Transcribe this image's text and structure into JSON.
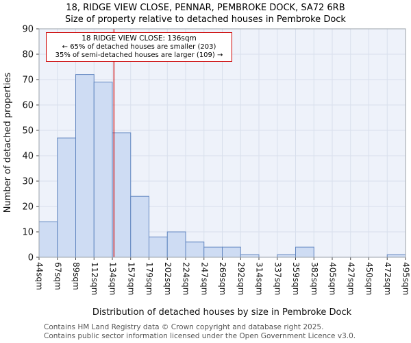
{
  "chart_data": {
    "type": "bar",
    "title": "18, RIDGE VIEW CLOSE, PENNAR, PEMBROKE DOCK, SA72 6RB",
    "subtitle": "Size of property relative to detached houses in Pembroke Dock",
    "xlabel": "Distribution of detached houses by size in Pembroke Dock",
    "ylabel": "Number of detached properties",
    "ylim": [
      0,
      90
    ],
    "ytick_step": 10,
    "grid": true,
    "legend": "none",
    "bin_labels": [
      "44sqm",
      "67sqm",
      "89sqm",
      "112sqm",
      "134sqm",
      "157sqm",
      "179sqm",
      "202sqm",
      "224sqm",
      "247sqm",
      "269sqm",
      "292sqm",
      "314sqm",
      "337sqm",
      "359sqm",
      "382sqm",
      "405sqm",
      "427sqm",
      "450sqm",
      "472sqm",
      "495sqm"
    ],
    "values": [
      14,
      47,
      72,
      69,
      49,
      24,
      8,
      10,
      6,
      4,
      4,
      1,
      0,
      1,
      4,
      0,
      0,
      0,
      0,
      1
    ],
    "marker": {
      "value": 136,
      "label": "136sqm"
    },
    "annotation": {
      "line1": "18 RIDGE VIEW CLOSE: 136sqm",
      "line2": "← 65% of detached houses are smaller (203)",
      "line3": "35% of semi-detached houses are larger (109) →"
    },
    "colors": {
      "bar_fill": "#cedcf3",
      "bar_stroke": "#6186c0",
      "marker_line": "#cc0000",
      "grid": "#d8dfec",
      "plot_bg": "#eef2fa",
      "frame": "#9aa0a8",
      "annotation_border": "#cc0000"
    }
  },
  "footer": {
    "line1": "Contains HM Land Registry data © Crown copyright and database right 2025.",
    "line2": "Contains public sector information licensed under the Open Government Licence v3.0."
  }
}
